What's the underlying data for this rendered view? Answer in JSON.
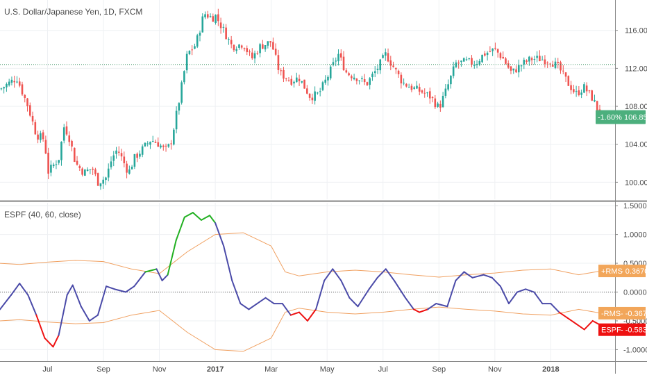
{
  "chart": {
    "symbol_title": "U.S. Dollar/Japanese Yen, 1D, FXCM",
    "indicator_title": "ESPF (40, 60, close)"
  },
  "colors": {
    "up": "#26a69a",
    "down": "#ef5350",
    "price_change_badge": "#4caf7d",
    "espf_neutral": "#4a4aa8",
    "espf_up": "#22b022",
    "espf_down": "#ee1111",
    "rms_band": "#f0a060",
    "rms_badge": "#f2a65a",
    "espf_badge": "#ee1111",
    "ref_line": "#2e8b57"
  },
  "badges": {
    "price_change": "-1.60%",
    "price_last": "106.858",
    "rms_plus_label": "+RMS",
    "rms_plus_value": "0.3670",
    "rms_minus_label": "-RMS",
    "rms_minus_value": "-0.3670",
    "espf_label": "ESPF",
    "espf_value": "-0.5833"
  },
  "chart_data": [
    {
      "type": "candlestick",
      "title": "U.S. Dollar/Japanese Yen, 1D, FXCM",
      "y_ticks": [
        "116.000",
        "112.000",
        "108.000",
        "104.000",
        "100.000"
      ],
      "y_tick_values": [
        116,
        112,
        108,
        104,
        100
      ],
      "ylim": [
        98.2,
        119.2
      ],
      "reference_line": 112.4,
      "last_price": 106.858,
      "x_ticks": [
        "Jul",
        "Sep",
        "Nov",
        "2017",
        "Mar",
        "May",
        "Jul",
        "Sep",
        "Nov",
        "2018"
      ],
      "x_tick_months": [
        2,
        4,
        6,
        8,
        10,
        12,
        14,
        16,
        18,
        20
      ],
      "x_range_months": [
        0.3,
        22.3
      ],
      "close_path": [
        {
          "m": 0.3,
          "v": 109.8
        },
        {
          "m": 0.9,
          "v": 111.0
        },
        {
          "m": 1.3,
          "v": 108.0
        },
        {
          "m": 1.6,
          "v": 105.0
        },
        {
          "m": 1.9,
          "v": 104.5
        },
        {
          "m": 2.0,
          "v": 101.0
        },
        {
          "m": 2.4,
          "v": 102.5
        },
        {
          "m": 2.6,
          "v": 106.0
        },
        {
          "m": 2.8,
          "v": 104.5
        },
        {
          "m": 3.0,
          "v": 102.0
        },
        {
          "m": 3.3,
          "v": 101.0
        },
        {
          "m": 3.6,
          "v": 101.5
        },
        {
          "m": 3.8,
          "v": 100.0
        },
        {
          "m": 4.1,
          "v": 100.5
        },
        {
          "m": 4.3,
          "v": 102.5
        },
        {
          "m": 4.5,
          "v": 103.5
        },
        {
          "m": 4.9,
          "v": 101.0
        },
        {
          "m": 5.1,
          "v": 102.5
        },
        {
          "m": 5.4,
          "v": 103.5
        },
        {
          "m": 5.7,
          "v": 104.5
        },
        {
          "m": 6.0,
          "v": 104.0
        },
        {
          "m": 6.2,
          "v": 103.3
        },
        {
          "m": 6.4,
          "v": 104.0
        },
        {
          "m": 6.7,
          "v": 108.5
        },
        {
          "m": 7.0,
          "v": 113.5
        },
        {
          "m": 7.3,
          "v": 114.5
        },
        {
          "m": 7.6,
          "v": 117.8
        },
        {
          "m": 7.9,
          "v": 117.3
        },
        {
          "m": 8.0,
          "v": 117.6
        },
        {
          "m": 8.3,
          "v": 116.0
        },
        {
          "m": 8.6,
          "v": 114.3
        },
        {
          "m": 9.0,
          "v": 114.6
        },
        {
          "m": 9.3,
          "v": 113.0
        },
        {
          "m": 9.6,
          "v": 114.3
        },
        {
          "m": 10.0,
          "v": 114.8
        },
        {
          "m": 10.3,
          "v": 111.5
        },
        {
          "m": 10.7,
          "v": 110.7
        },
        {
          "m": 11.0,
          "v": 111.0
        },
        {
          "m": 11.4,
          "v": 109.0
        },
        {
          "m": 11.7,
          "v": 109.3
        },
        {
          "m": 12.0,
          "v": 111.0
        },
        {
          "m": 12.4,
          "v": 113.5
        },
        {
          "m": 12.7,
          "v": 111.5
        },
        {
          "m": 13.1,
          "v": 111.0
        },
        {
          "m": 13.4,
          "v": 110.3
        },
        {
          "m": 13.8,
          "v": 112.0
        },
        {
          "m": 14.1,
          "v": 113.5
        },
        {
          "m": 14.4,
          "v": 112.0
        },
        {
          "m": 14.7,
          "v": 110.5
        },
        {
          "m": 15.0,
          "v": 110.0
        },
        {
          "m": 15.4,
          "v": 109.5
        },
        {
          "m": 15.7,
          "v": 109.0
        },
        {
          "m": 16.0,
          "v": 107.8
        },
        {
          "m": 16.3,
          "v": 110.0
        },
        {
          "m": 16.6,
          "v": 112.5
        },
        {
          "m": 17.0,
          "v": 112.7
        },
        {
          "m": 17.3,
          "v": 112.5
        },
        {
          "m": 17.6,
          "v": 113.5
        },
        {
          "m": 18.0,
          "v": 114.0
        },
        {
          "m": 18.3,
          "v": 113.0
        },
        {
          "m": 18.6,
          "v": 111.5
        },
        {
          "m": 19.0,
          "v": 112.5
        },
        {
          "m": 19.3,
          "v": 113.0
        },
        {
          "m": 19.6,
          "v": 113.0
        },
        {
          "m": 20.0,
          "v": 112.8
        },
        {
          "m": 20.3,
          "v": 112.0
        },
        {
          "m": 20.6,
          "v": 110.5
        },
        {
          "m": 20.9,
          "v": 109.3
        },
        {
          "m": 21.2,
          "v": 110.0
        },
        {
          "m": 21.5,
          "v": 108.8
        },
        {
          "m": 21.8,
          "v": 106.86
        }
      ]
    },
    {
      "type": "line",
      "title": "ESPF (40, 60, close)",
      "y_ticks": [
        "1.5000",
        "1.0000",
        "0.5000",
        "0.0000",
        "-0.5000",
        "-1.0000"
      ],
      "y_tick_values": [
        1.5,
        1.0,
        0.5,
        0.0,
        -0.5,
        -1.0
      ],
      "ylim": [
        -1.2,
        1.55
      ],
      "zero_line": 0,
      "series": [
        {
          "name": "ESPF",
          "points": [
            {
              "m": 0.3,
              "v": -0.3
            },
            {
              "m": 0.7,
              "v": -0.05
            },
            {
              "m": 1.0,
              "v": 0.15
            },
            {
              "m": 1.3,
              "v": -0.05
            },
            {
              "m": 1.6,
              "v": -0.4
            },
            {
              "m": 1.9,
              "v": -0.8
            },
            {
              "m": 2.2,
              "v": -0.95
            },
            {
              "m": 2.4,
              "v": -0.75
            },
            {
              "m": 2.7,
              "v": -0.05
            },
            {
              "m": 2.9,
              "v": 0.12
            },
            {
              "m": 3.2,
              "v": -0.25
            },
            {
              "m": 3.5,
              "v": -0.5
            },
            {
              "m": 3.8,
              "v": -0.4
            },
            {
              "m": 4.1,
              "v": 0.1
            },
            {
              "m": 4.4,
              "v": 0.05
            },
            {
              "m": 4.8,
              "v": 0.0
            },
            {
              "m": 5.1,
              "v": 0.1
            },
            {
              "m": 5.5,
              "v": 0.35
            },
            {
              "m": 5.9,
              "v": 0.4
            },
            {
              "m": 6.1,
              "v": 0.2
            },
            {
              "m": 6.3,
              "v": 0.3
            },
            {
              "m": 6.6,
              "v": 0.9
            },
            {
              "m": 6.9,
              "v": 1.3
            },
            {
              "m": 7.2,
              "v": 1.38
            },
            {
              "m": 7.5,
              "v": 1.25
            },
            {
              "m": 7.8,
              "v": 1.33
            },
            {
              "m": 8.0,
              "v": 1.2
            },
            {
              "m": 8.3,
              "v": 0.8
            },
            {
              "m": 8.6,
              "v": 0.2
            },
            {
              "m": 8.9,
              "v": -0.2
            },
            {
              "m": 9.2,
              "v": -0.3
            },
            {
              "m": 9.5,
              "v": -0.2
            },
            {
              "m": 9.8,
              "v": -0.1
            },
            {
              "m": 10.1,
              "v": -0.2
            },
            {
              "m": 10.4,
              "v": -0.2
            },
            {
              "m": 10.7,
              "v": -0.4
            },
            {
              "m": 11.0,
              "v": -0.35
            },
            {
              "m": 11.3,
              "v": -0.5
            },
            {
              "m": 11.6,
              "v": -0.3
            },
            {
              "m": 11.9,
              "v": 0.2
            },
            {
              "m": 12.2,
              "v": 0.4
            },
            {
              "m": 12.5,
              "v": 0.2
            },
            {
              "m": 12.8,
              "v": -0.1
            },
            {
              "m": 13.1,
              "v": -0.25
            },
            {
              "m": 13.5,
              "v": 0.05
            },
            {
              "m": 13.8,
              "v": 0.25
            },
            {
              "m": 14.1,
              "v": 0.4
            },
            {
              "m": 14.4,
              "v": 0.2
            },
            {
              "m": 14.8,
              "v": -0.1
            },
            {
              "m": 15.1,
              "v": -0.3
            },
            {
              "m": 15.3,
              "v": -0.35
            },
            {
              "m": 15.6,
              "v": -0.3
            },
            {
              "m": 15.9,
              "v": -0.2
            },
            {
              "m": 16.3,
              "v": -0.25
            },
            {
              "m": 16.6,
              "v": 0.2
            },
            {
              "m": 16.9,
              "v": 0.35
            },
            {
              "m": 17.2,
              "v": 0.25
            },
            {
              "m": 17.6,
              "v": 0.3
            },
            {
              "m": 17.9,
              "v": 0.25
            },
            {
              "m": 18.2,
              "v": 0.1
            },
            {
              "m": 18.5,
              "v": -0.2
            },
            {
              "m": 18.8,
              "v": 0.0
            },
            {
              "m": 19.1,
              "v": 0.05
            },
            {
              "m": 19.4,
              "v": 0.0
            },
            {
              "m": 19.7,
              "v": -0.2
            },
            {
              "m": 20.0,
              "v": -0.2
            },
            {
              "m": 20.3,
              "v": -0.35
            },
            {
              "m": 20.6,
              "v": -0.45
            },
            {
              "m": 20.9,
              "v": -0.55
            },
            {
              "m": 21.2,
              "v": -0.65
            },
            {
              "m": 21.5,
              "v": -0.5
            },
            {
              "m": 21.8,
              "v": -0.58
            }
          ]
        },
        {
          "name": "+RMS",
          "points": [
            {
              "m": 0.3,
              "v": 0.5
            },
            {
              "m": 1.0,
              "v": 0.48
            },
            {
              "m": 2.0,
              "v": 0.52
            },
            {
              "m": 3.0,
              "v": 0.55
            },
            {
              "m": 4.0,
              "v": 0.53
            },
            {
              "m": 5.0,
              "v": 0.4
            },
            {
              "m": 6.0,
              "v": 0.32
            },
            {
              "m": 7.0,
              "v": 0.7
            },
            {
              "m": 8.0,
              "v": 1.0
            },
            {
              "m": 9.0,
              "v": 1.03
            },
            {
              "m": 10.0,
              "v": 0.8
            },
            {
              "m": 10.5,
              "v": 0.35
            },
            {
              "m": 11.0,
              "v": 0.28
            },
            {
              "m": 12.0,
              "v": 0.35
            },
            {
              "m": 13.0,
              "v": 0.38
            },
            {
              "m": 14.0,
              "v": 0.35
            },
            {
              "m": 15.0,
              "v": 0.3
            },
            {
              "m": 16.0,
              "v": 0.26
            },
            {
              "m": 17.0,
              "v": 0.3
            },
            {
              "m": 18.0,
              "v": 0.33
            },
            {
              "m": 19.0,
              "v": 0.38
            },
            {
              "m": 20.0,
              "v": 0.4
            },
            {
              "m": 21.0,
              "v": 0.3
            },
            {
              "m": 21.8,
              "v": 0.367
            }
          ]
        },
        {
          "name": "-RMS",
          "points": [
            {
              "m": 0.3,
              "v": -0.5
            },
            {
              "m": 1.0,
              "v": -0.48
            },
            {
              "m": 2.0,
              "v": -0.52
            },
            {
              "m": 3.0,
              "v": -0.55
            },
            {
              "m": 4.0,
              "v": -0.53
            },
            {
              "m": 5.0,
              "v": -0.4
            },
            {
              "m": 6.0,
              "v": -0.32
            },
            {
              "m": 7.0,
              "v": -0.7
            },
            {
              "m": 8.0,
              "v": -1.0
            },
            {
              "m": 9.0,
              "v": -1.03
            },
            {
              "m": 10.0,
              "v": -0.8
            },
            {
              "m": 10.5,
              "v": -0.35
            },
            {
              "m": 11.0,
              "v": -0.28
            },
            {
              "m": 12.0,
              "v": -0.35
            },
            {
              "m": 13.0,
              "v": -0.38
            },
            {
              "m": 14.0,
              "v": -0.35
            },
            {
              "m": 15.0,
              "v": -0.3
            },
            {
              "m": 16.0,
              "v": -0.26
            },
            {
              "m": 17.0,
              "v": -0.3
            },
            {
              "m": 18.0,
              "v": -0.33
            },
            {
              "m": 19.0,
              "v": -0.38
            },
            {
              "m": 20.0,
              "v": -0.4
            },
            {
              "m": 21.0,
              "v": -0.3
            },
            {
              "m": 21.8,
              "v": -0.367
            }
          ]
        }
      ]
    }
  ]
}
